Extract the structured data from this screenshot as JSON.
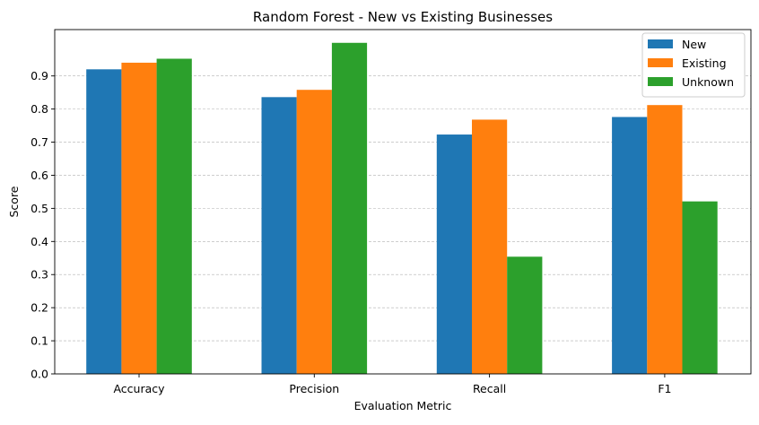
{
  "chart_data": {
    "type": "bar",
    "title": "Random Forest - New vs Existing Businesses",
    "xlabel": "Evaluation Metric",
    "ylabel": "Score",
    "categories": [
      "Accuracy",
      "Precision",
      "Recall",
      "F1"
    ],
    "series": [
      {
        "name": "New",
        "color": "#1f77b4",
        "values": [
          0.92,
          0.836,
          0.723,
          0.776
        ]
      },
      {
        "name": "Existing",
        "color": "#ff7f0e",
        "values": [
          0.94,
          0.858,
          0.768,
          0.812
        ]
      },
      {
        "name": "Unknown",
        "color": "#2ca02c",
        "values": [
          0.952,
          1.0,
          0.354,
          0.521
        ]
      }
    ],
    "ylim": [
      0,
      1.04
    ],
    "yticks": [
      0.0,
      0.1,
      0.2,
      0.3,
      0.4,
      0.5,
      0.6,
      0.7,
      0.8,
      0.9
    ],
    "ytick_labels": [
      "0.0",
      "0.1",
      "0.2",
      "0.3",
      "0.4",
      "0.5",
      "0.6",
      "0.7",
      "0.8",
      "0.9"
    ],
    "grid": "y",
    "legend_position": "top-right"
  }
}
